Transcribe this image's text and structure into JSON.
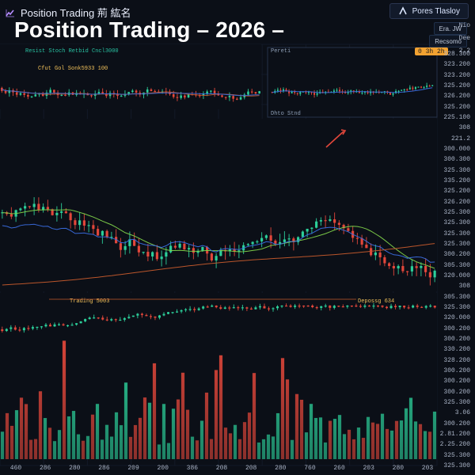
{
  "header": {
    "brand": "Position Trading 荊 紘名",
    "title": "Position Trading – 2026 –"
  },
  "top_right": {
    "pill_label": "Pores Tlasloy",
    "pill_2": "Era. JW",
    "pill_3": "Recsomo"
  },
  "panels": {
    "top_strip_legends": [
      "Resist Stoch Retbid Cncl3000",
      "Cfut Gol Sonk5933 100"
    ],
    "mini_panel": {
      "title": "Pereti",
      "bottom_label": "Dhto Stnd",
      "badge": "0 3h 2h"
    },
    "lower_strip_legends": [
      "Trading 5003",
      "Depossg 634"
    ]
  },
  "right_axis": {
    "ticks": [
      "328.300",
      "323.200",
      "323.200",
      "325.200",
      "326.200",
      "325.200",
      "225.100",
      "308",
      "221.2",
      "300.000",
      "300.300",
      "325.300",
      "335.200",
      "325.200",
      "326.200",
      "325.300",
      "325.300",
      "325.300",
      "325.300",
      "300.200",
      "305.300",
      "320.000",
      "308",
      "305.300",
      "325.300",
      "320.000",
      "300.200",
      "300.200",
      "330.200",
      "328.200",
      "300.200",
      "300.200",
      "300.200",
      "325.300",
      "3.06",
      "300.200",
      "2.81.200",
      "2.25.200",
      "325.300",
      "325.300"
    ],
    "tick_labels_small": [
      "Nio",
      "Dee",
      "2.2"
    ]
  },
  "bottom_axis": {
    "ticks": [
      "460",
      "286",
      "280",
      "286",
      "209",
      "200",
      "386",
      "208",
      "208",
      "280",
      "760",
      "260",
      "203",
      "280",
      "203"
    ]
  },
  "colors": {
    "bg": "#0b0f17",
    "bull": "#2ccf9a",
    "bear": "#e2473b",
    "ma_green": "#7fd24a",
    "ma_blue": "#3a6de0",
    "ma_orange": "#c45a2c",
    "grid": "#192235"
  }
}
